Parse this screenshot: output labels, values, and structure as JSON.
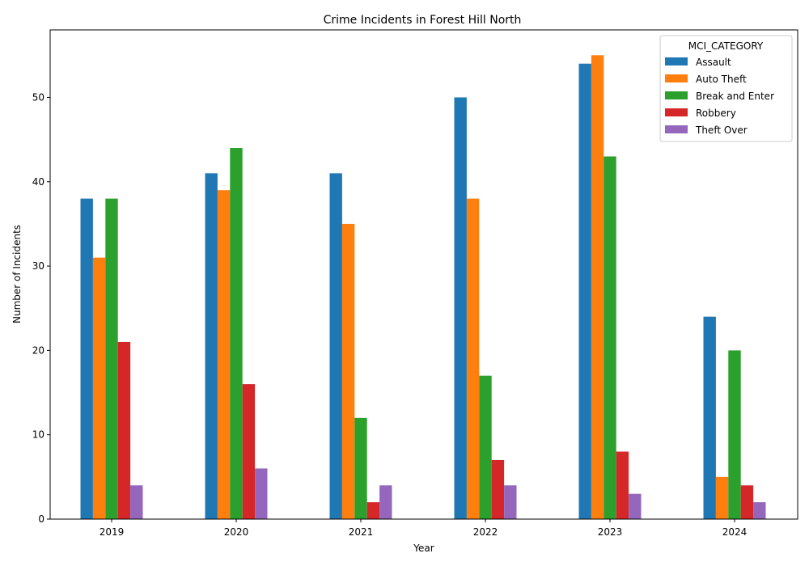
{
  "chart_data": {
    "type": "bar",
    "title": "Crime Incidents in Forest Hill North",
    "xlabel": "Year",
    "ylabel": "Number of Incidents",
    "categories": [
      "2019",
      "2020",
      "2021",
      "2022",
      "2023",
      "2024"
    ],
    "ylim": [
      0,
      58
    ],
    "yticks": [
      0,
      10,
      20,
      30,
      40,
      50
    ],
    "grid": false,
    "legend": {
      "title": "MCI_CATEGORY",
      "placement": "top-right"
    },
    "series": [
      {
        "name": "Assault",
        "color": "#1f77b4",
        "values": [
          38,
          41,
          41,
          50,
          54,
          24
        ]
      },
      {
        "name": "Auto Theft",
        "color": "#ff7f0e",
        "values": [
          31,
          39,
          35,
          38,
          55,
          5
        ]
      },
      {
        "name": "Break and Enter",
        "color": "#2ca02c",
        "values": [
          38,
          44,
          12,
          17,
          43,
          20
        ]
      },
      {
        "name": "Robbery",
        "color": "#d62728",
        "values": [
          21,
          16,
          2,
          7,
          8,
          4
        ]
      },
      {
        "name": "Theft Over",
        "color": "#9467bd",
        "values": [
          4,
          6,
          4,
          4,
          3,
          2
        ]
      }
    ]
  }
}
